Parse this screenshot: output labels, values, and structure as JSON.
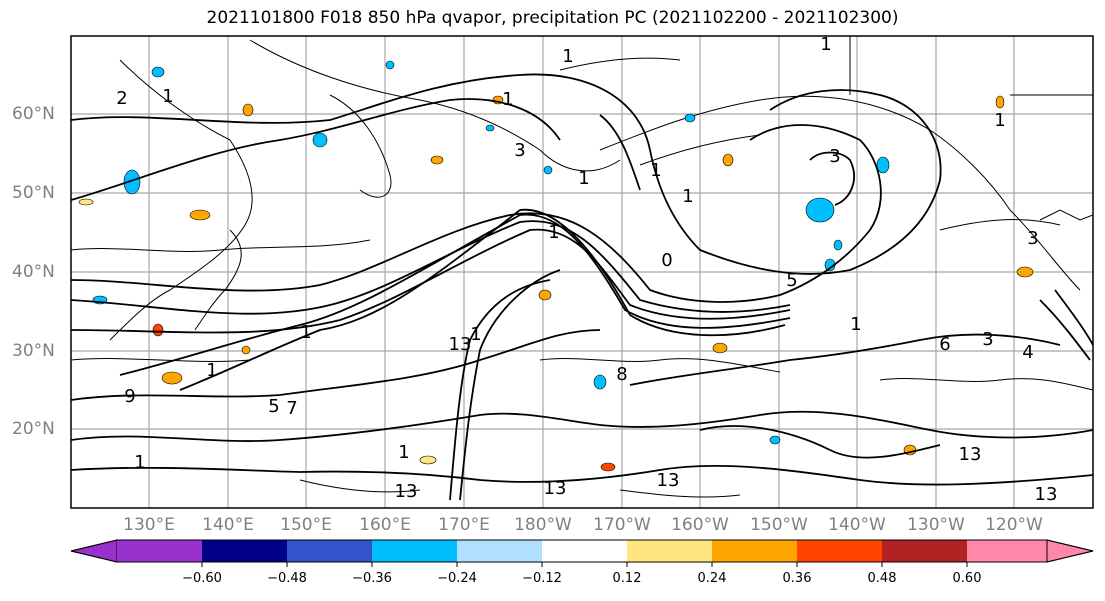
{
  "title": "2021101800 F018 850 hPa qvapor, precipitation PC (2021102200 - 2021102300)",
  "lat_labels": [
    "60°N",
    "50°N",
    "40°N",
    "30°N",
    "20°N"
  ],
  "lon_labels": [
    "130°E",
    "140°E",
    "150°E",
    "160°E",
    "170°E",
    "180°W",
    "170°W",
    "160°W",
    "150°W",
    "140°W",
    "130°W",
    "120°W"
  ],
  "contour_labels": [
    "2",
    "1",
    "1",
    "3",
    "1",
    "1",
    "1",
    "3",
    "1",
    "5",
    "1",
    "0",
    "1",
    "1",
    "3",
    "1",
    "9",
    "8",
    "5",
    "7",
    "1",
    "1",
    "13",
    "1",
    "1",
    "13",
    "13",
    "13",
    "13",
    "3",
    "6",
    "4",
    "1",
    "13"
  ],
  "colorbar": {
    "levels": [
      "−0.60",
      "−0.48",
      "−0.36",
      "−0.24",
      "−0.12",
      "0.12",
      "0.24",
      "0.36",
      "0.48",
      "0.60"
    ],
    "colors": [
      "#9932cc",
      "#00008b",
      "#3355cc",
      "#00bfff",
      "#b0e0ff",
      "#ffffff",
      "#ffe680",
      "#ffa500",
      "#ff4500",
      "#b22222",
      "#ff88aa"
    ]
  }
}
